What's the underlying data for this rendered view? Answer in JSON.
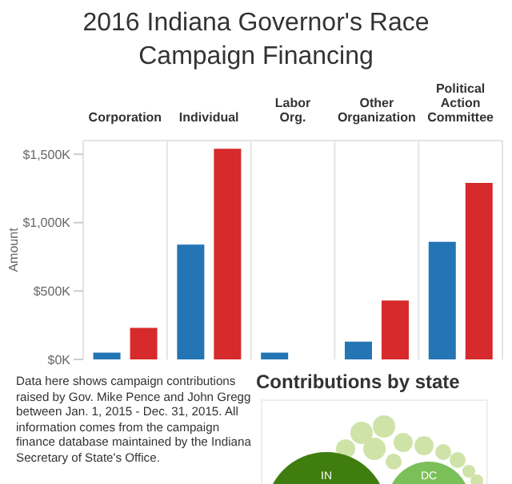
{
  "chart_data": [
    {
      "type": "bar",
      "title": "2016 Indiana Governor's Race Campaign Financing",
      "ylabel": "Amount",
      "categories": [
        "Corporation",
        "Individual",
        "Labor Org.",
        "Other Organization",
        "Political Action Committee"
      ],
      "series": [
        {
          "color": "#2375b3",
          "values": [
            50,
            840,
            50,
            130,
            860
          ]
        },
        {
          "color": "#d62a2c",
          "values": [
            230,
            1540,
            null,
            430,
            1290
          ]
        }
      ],
      "ylim": [
        0,
        1600
      ],
      "yticks": [
        {
          "value": 0,
          "label": "$0K"
        },
        {
          "value": 500,
          "label": "$500K"
        },
        {
          "value": 1000,
          "label": "$1,000K"
        },
        {
          "value": 1500,
          "label": "$1,500K"
        }
      ],
      "grid": "x",
      "annotations": [
        "Data here shows campaign contributions raised by Gov. Mike Pence and John Gregg between Jan. 1, 2015 - Dec. 31, 2015. All information comes from the campaign finance database maintained by the Indiana Secretary of State's Office."
      ]
    },
    {
      "type": "other",
      "title": "Contributions by state",
      "annotations": [
        "IN",
        "DC"
      ]
    }
  ]
}
